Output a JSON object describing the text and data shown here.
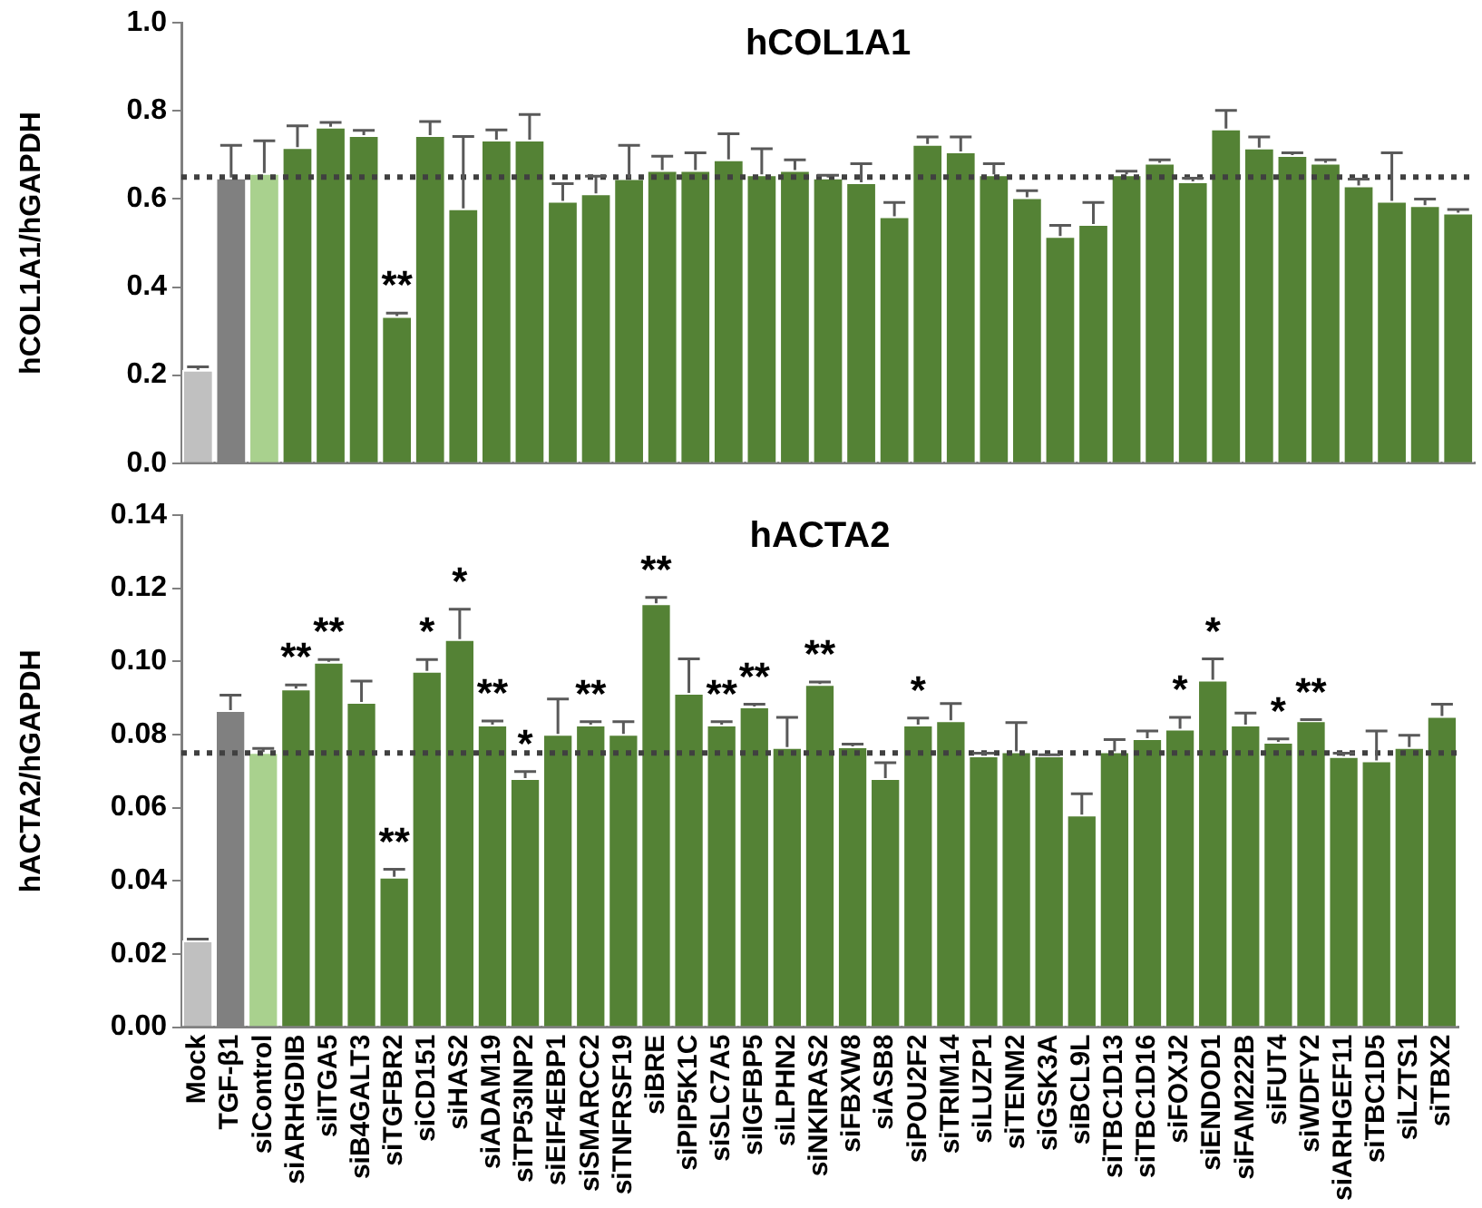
{
  "chart_data": [
    {
      "type": "bar",
      "title": "hCOL1A1",
      "ylabel": "hCOL1A1/hGAPDH",
      "tick_labels": "y",
      "grid": false,
      "categories": [
        "Mock",
        "TGF-β1",
        "siControl",
        "siARHGDIB",
        "siITGA5",
        "siB4GALT3",
        "siTGFBR2",
        "siCD151",
        "siHAS2",
        "siADAM19",
        "siTP53INP2",
        "siEIF4EBP1",
        "siSMARCC2",
        "siTNFRSF19",
        "siBRE",
        "siPIP5K1C",
        "siSLC7A5",
        "siIGFBP5",
        "siLPHN2",
        "siNKIRAS2",
        "siFBXW8",
        "siASB8",
        "siPOU2F2",
        "siTRIM14",
        "siLUZP1",
        "siTENM2",
        "siGSK3A",
        "siBCL9L",
        "siTBC1D13",
        "siTBC1D16",
        "siFOXJ2",
        "siENDOD1",
        "siFAM222B",
        "siFUT4",
        "siWDFY2",
        "siARHGEF11",
        "siTBC1D5",
        "siLZTS1",
        "siTBX2"
      ],
      "values": [
        0.212,
        0.649,
        0.659,
        0.718,
        0.764,
        0.745,
        0.334,
        0.745,
        0.579,
        0.735,
        0.735,
        0.596,
        0.613,
        0.647,
        0.666,
        0.666,
        0.69,
        0.656,
        0.666,
        0.649,
        0.638,
        0.561,
        0.725,
        0.708,
        0.656,
        0.604,
        0.516,
        0.543,
        0.656,
        0.682,
        0.64,
        0.76,
        0.717,
        0.7,
        0.682,
        0.631,
        0.596,
        0.586,
        0.569
      ],
      "errors": [
        [
          0.212,
          0.219
        ],
        [
          0.649,
          0.722
        ],
        [
          0.659,
          0.732
        ],
        [
          0.718,
          0.766
        ],
        [
          0.764,
          0.774
        ],
        [
          0.745,
          0.756
        ],
        [
          0.334,
          0.341
        ],
        [
          0.745,
          0.776
        ],
        [
          0.579,
          0.742
        ],
        [
          0.735,
          0.757
        ],
        [
          0.735,
          0.792
        ],
        [
          0.596,
          0.635
        ],
        [
          0.613,
          0.652
        ],
        [
          0.647,
          0.722
        ],
        [
          0.666,
          0.697
        ],
        [
          0.666,
          0.705
        ],
        [
          0.69,
          0.748
        ],
        [
          0.656,
          0.714
        ],
        [
          0.666,
          0.689
        ],
        [
          0.649,
          0.654
        ],
        [
          0.638,
          0.68
        ],
        [
          0.561,
          0.592
        ],
        [
          0.725,
          0.741
        ],
        [
          0.708,
          0.741
        ],
        [
          0.656,
          0.68
        ],
        [
          0.604,
          0.619
        ],
        [
          0.516,
          0.54
        ],
        [
          0.543,
          0.592
        ],
        [
          0.656,
          0.663
        ],
        [
          0.682,
          0.689
        ],
        [
          0.64,
          0.647
        ],
        [
          0.76,
          0.801
        ],
        [
          0.717,
          0.741
        ],
        [
          0.7,
          0.705
        ],
        [
          0.682,
          0.689
        ],
        [
          0.631,
          0.645
        ],
        [
          0.596,
          0.705
        ],
        [
          0.586,
          0.6
        ],
        [
          0.569,
          0.576
        ]
      ],
      "colors": [
        "#c0c0c0",
        "#808080",
        "#a9d18e",
        "#548235",
        "#548235",
        "#548235",
        "#548235",
        "#548235",
        "#548235",
        "#548235",
        "#548235",
        "#548235",
        "#548235",
        "#548235",
        "#548235",
        "#548235",
        "#548235",
        "#548235",
        "#548235",
        "#548235",
        "#548235",
        "#548235",
        "#548235",
        "#548235",
        "#548235",
        "#548235",
        "#548235",
        "#548235",
        "#548235",
        "#548235",
        "#548235",
        "#548235",
        "#548235",
        "#548235",
        "#548235",
        "#548235",
        "#548235",
        "#548235",
        "#548235"
      ],
      "ylim": [
        0,
        1.0
      ],
      "yticks": [
        {
          "value": 0,
          "label": "0.0"
        },
        0.2,
        0.4,
        0.6,
        0.8,
        {
          "value": 1.0,
          "label": "1.0"
        }
      ],
      "ref_lines": [
        {
          "axis": "y",
          "value": 0.65,
          "color": "#404040",
          "line_style": "dotted"
        }
      ],
      "annotations": [
        {
          "text": "**",
          "x": "siTGFBR2",
          "y": 0.334
        }
      ]
    },
    {
      "type": "bar",
      "title": "hACTA2",
      "ylabel": "hACTA2/hGAPDH",
      "grid": false,
      "categories": [
        "Mock",
        "TGF-β1",
        "siControl",
        "siARHGDIB",
        "siITGA5",
        "siB4GALT3",
        "siTGFBR2",
        "siCD151",
        "siHAS2",
        "siADAM19",
        "siTP53INP2",
        "siEIF4EBP1",
        "siSMARCC2",
        "siTNFRSF19",
        "siBRE",
        "siPIP5K1C",
        "siSLC7A5",
        "siIGFBP5",
        "siLPHN2",
        "siNKIRAS2",
        "siFBXW8",
        "siASB8",
        "siPOU2F2",
        "siTRIM14",
        "siLUZP1",
        "siTENM2",
        "siGSK3A",
        "siBCL9L",
        "siTBC1D13",
        "siTBC1D16",
        "siFOXJ2",
        "siENDOD1",
        "siFAM222B",
        "siFUT4",
        "siWDFY2",
        "siARHGEF11",
        "siTBC1D5",
        "siLZTS1",
        "siTBX2"
      ],
      "values": [
        0.0237,
        0.0867,
        0.0752,
        0.0926,
        0.0999,
        0.0889,
        0.0411,
        0.0974,
        0.1061,
        0.0827,
        0.0681,
        0.0802,
        0.0827,
        0.0802,
        0.1159,
        0.0914,
        0.0827,
        0.0877,
        0.0766,
        0.0938,
        0.0768,
        0.0681,
        0.0827,
        0.0839,
        0.0743,
        0.0754,
        0.0743,
        0.0581,
        0.0754,
        0.079,
        0.0816,
        0.095,
        0.0827,
        0.078,
        0.0839,
        0.0741,
        0.0729,
        0.0766,
        0.0851
      ],
      "errors": [
        [
          0.0237,
          0.0241
        ],
        [
          0.0867,
          0.0908
        ],
        [
          0.0752,
          0.0762
        ],
        [
          0.0926,
          0.0936
        ],
        [
          0.0999,
          0.1005
        ],
        [
          0.0889,
          0.0946
        ],
        [
          0.0411,
          0.0432
        ],
        [
          0.0974,
          0.1005
        ],
        [
          0.1061,
          0.1143
        ],
        [
          0.0827,
          0.0837
        ],
        [
          0.0681,
          0.0699
        ],
        [
          0.0802,
          0.0897
        ],
        [
          0.0827,
          0.0835
        ],
        [
          0.0802,
          0.0835
        ],
        [
          0.1159,
          0.1175
        ],
        [
          0.0914,
          0.1007
        ],
        [
          0.0827,
          0.0835
        ],
        [
          0.0877,
          0.0883
        ],
        [
          0.0766,
          0.0847
        ],
        [
          0.0938,
          0.0944
        ],
        [
          0.0768,
          0.0774
        ],
        [
          0.0681,
          0.0723
        ],
        [
          0.0827,
          0.0845
        ],
        [
          0.0839,
          0.0885
        ],
        [
          0.0743,
          0.0749
        ],
        [
          0.0754,
          0.0833
        ],
        [
          0.0743,
          0.0745
        ],
        [
          0.0581,
          0.0638
        ],
        [
          0.0754,
          0.0786
        ],
        [
          0.079,
          0.081
        ],
        [
          0.0816,
          0.0847
        ],
        [
          0.095,
          0.1007
        ],
        [
          0.0827,
          0.0859
        ],
        [
          0.078,
          0.0788
        ],
        [
          0.0839,
          0.0841
        ],
        [
          0.0741,
          0.0749
        ],
        [
          0.0729,
          0.081
        ],
        [
          0.0766,
          0.0798
        ],
        [
          0.0851,
          0.0883
        ]
      ],
      "colors": [
        "#c0c0c0",
        "#808080",
        "#a9d18e",
        "#548235",
        "#548235",
        "#548235",
        "#548235",
        "#548235",
        "#548235",
        "#548235",
        "#548235",
        "#548235",
        "#548235",
        "#548235",
        "#548235",
        "#548235",
        "#548235",
        "#548235",
        "#548235",
        "#548235",
        "#548235",
        "#548235",
        "#548235",
        "#548235",
        "#548235",
        "#548235",
        "#548235",
        "#548235",
        "#548235",
        "#548235",
        "#548235",
        "#548235",
        "#548235",
        "#548235",
        "#548235",
        "#548235",
        "#548235",
        "#548235",
        "#548235"
      ],
      "ylim": [
        0,
        0.14
      ],
      "yticks": [
        {
          "value": 0,
          "label": "0.00"
        },
        0.02,
        0.04,
        0.06,
        0.08,
        {
          "value": 0.1,
          "label": "0.10"
        },
        0.12,
        0.14
      ],
      "ref_lines": [
        {
          "axis": "y",
          "value": 0.075,
          "color": "#404040",
          "line_style": "dotted"
        }
      ],
      "annotations": [
        {
          "text": "**",
          "x": "siARHGDIB",
          "y": 0.0926
        },
        {
          "text": "**",
          "x": "siITGA5",
          "y": 0.0999
        },
        {
          "text": "**",
          "x": "siTGFBR2",
          "y": 0.0411
        },
        {
          "text": "*",
          "x": "siCD151",
          "y": 0.0974
        },
        {
          "text": "*",
          "x": "siHAS2",
          "y": 0.1061
        },
        {
          "text": "**",
          "x": "siADAM19",
          "y": 0.0827
        },
        {
          "text": "*",
          "x": "siTP53INP2",
          "y": 0.0681
        },
        {
          "text": "**",
          "x": "siSMARCC2",
          "y": 0.0827
        },
        {
          "text": "**",
          "x": "siBRE",
          "y": 0.1159
        },
        {
          "text": "**",
          "x": "siSLC7A5",
          "y": 0.0827
        },
        {
          "text": "**",
          "x": "siIGFBP5",
          "y": 0.0877
        },
        {
          "text": "**",
          "x": "siNKIRAS2",
          "y": 0.0938
        },
        {
          "text": "*",
          "x": "siPOU2F2",
          "y": 0.0827
        },
        {
          "text": "*",
          "x": "siFOXJ2",
          "y": 0.0816
        },
        {
          "text": "*",
          "x": "siENDOD1",
          "y": 0.095
        },
        {
          "text": "*",
          "x": "siFUT4",
          "y": 0.078
        },
        {
          "text": "**",
          "x": "siWDFY2",
          "y": 0.0839
        }
      ]
    }
  ]
}
